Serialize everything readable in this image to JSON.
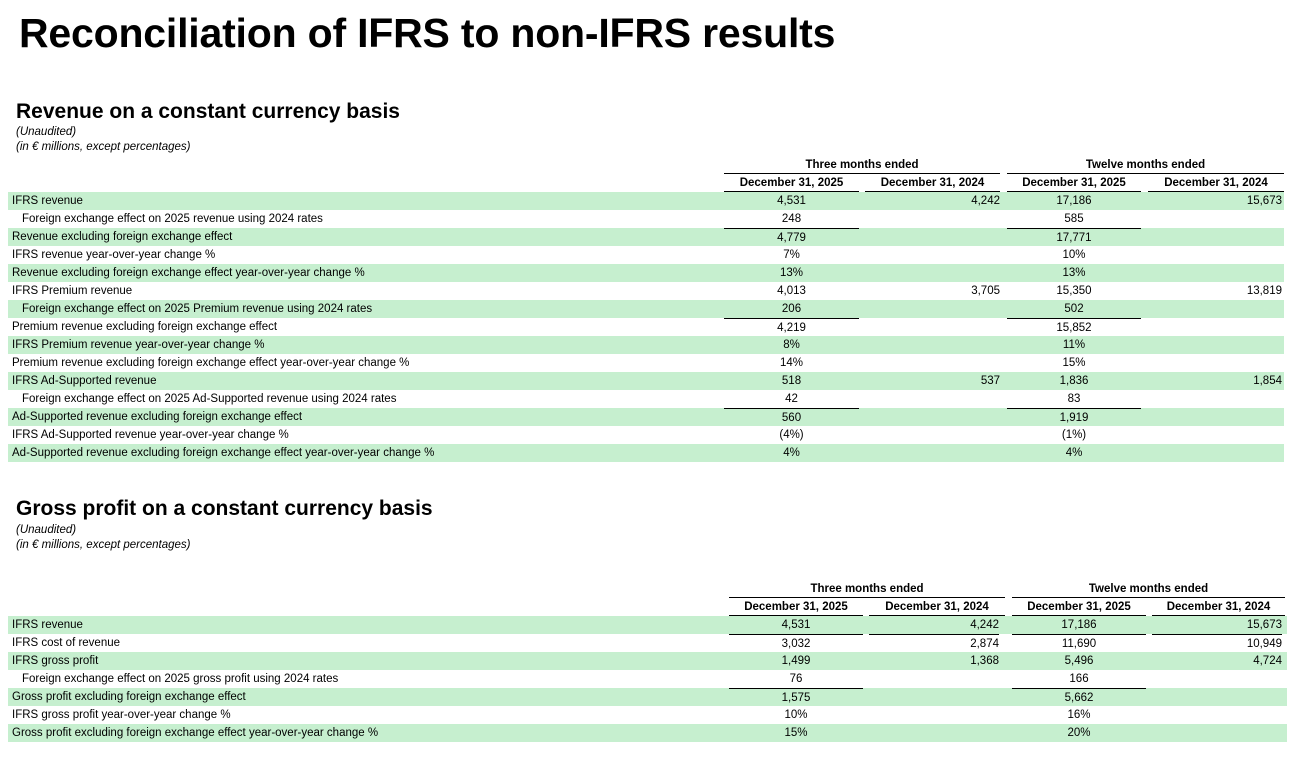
{
  "page_title": "Reconciliation of IFRS to non-IFRS results",
  "revenue": {
    "title": "Revenue on a constant currency basis",
    "unaudited": "(Unaudited)",
    "units": "(in € millions, except percentages)",
    "group_three": "Three months ended",
    "group_twelve": "Twelve months ended",
    "columns": [
      "December 31, 2025",
      "December 31, 2024",
      "December 31, 2025",
      "December 31, 2024"
    ],
    "rows": [
      {
        "label": "IFRS revenue",
        "c1": "4,531",
        "c2": "4,242",
        "c3": "17,186",
        "c4": "15,673"
      },
      {
        "label": "Foreign exchange effect on 2025 revenue using 2024 rates",
        "c1": "248",
        "c2": "",
        "c3": "585",
        "c4": ""
      },
      {
        "label": "Revenue excluding foreign exchange effect",
        "c1": "4,779",
        "c2": "",
        "c3": "17,771",
        "c4": ""
      },
      {
        "label": "IFRS revenue year-over-year change %",
        "c1": "7%",
        "c2": "",
        "c3": "10%",
        "c4": ""
      },
      {
        "label": "Revenue excluding foreign exchange effect year-over-year change %",
        "c1": "13%",
        "c2": "",
        "c3": "13%",
        "c4": ""
      },
      {
        "label": "IFRS Premium revenue",
        "c1": "4,013",
        "c2": "3,705",
        "c3": "15,350",
        "c4": "13,819"
      },
      {
        "label": "Foreign exchange effect on 2025 Premium revenue using 2024 rates",
        "c1": "206",
        "c2": "",
        "c3": "502",
        "c4": ""
      },
      {
        "label": "Premium revenue excluding foreign exchange effect",
        "c1": "4,219",
        "c2": "",
        "c3": "15,852",
        "c4": ""
      },
      {
        "label": "IFRS Premium revenue year-over-year change %",
        "c1": "8%",
        "c2": "",
        "c3": "11%",
        "c4": ""
      },
      {
        "label": "Premium revenue excluding foreign exchange effect year-over-year change %",
        "c1": "14%",
        "c2": "",
        "c3": "15%",
        "c4": ""
      },
      {
        "label": "IFRS Ad-Supported revenue",
        "c1": "518",
        "c2": "537",
        "c3": "1,836",
        "c4": "1,854"
      },
      {
        "label": "Foreign exchange effect on 2025 Ad-Supported revenue using 2024 rates",
        "c1": "42",
        "c2": "",
        "c3": "83",
        "c4": ""
      },
      {
        "label": "Ad-Supported revenue excluding foreign exchange effect",
        "c1": "560",
        "c2": "",
        "c3": "1,919",
        "c4": ""
      },
      {
        "label": "IFRS Ad-Supported revenue year-over-year change %",
        "c1": "(4%)",
        "c2": "",
        "c3": "(1%)",
        "c4": ""
      },
      {
        "label": "Ad-Supported revenue excluding foreign exchange effect year-over-year change %",
        "c1": "4%",
        "c2": "",
        "c3": "4%",
        "c4": ""
      }
    ]
  },
  "gross_profit": {
    "title": "Gross profit on a constant currency basis",
    "unaudited": "(Unaudited)",
    "units": "(in € millions, except percentages)",
    "group_three": "Three months ended",
    "group_twelve": "Twelve months ended",
    "columns": [
      "December 31, 2025",
      "December 31, 2024",
      "December 31, 2025",
      "December 31, 2024"
    ],
    "rows": [
      {
        "label": "IFRS revenue",
        "c1": "4,531",
        "c2": "4,242",
        "c3": "17,186",
        "c4": "15,673"
      },
      {
        "label": "IFRS cost of revenue",
        "c1": "3,032",
        "c2": "2,874",
        "c3": "11,690",
        "c4": "10,949"
      },
      {
        "label": "IFRS gross profit",
        "c1": "1,499",
        "c2": "1,368",
        "c3": "5,496",
        "c4": "4,724"
      },
      {
        "label": "Foreign exchange effect on 2025 gross profit using 2024 rates",
        "c1": "76",
        "c2": "",
        "c3": "166",
        "c4": ""
      },
      {
        "label": "Gross profit excluding foreign exchange effect",
        "c1": "1,575",
        "c2": "",
        "c3": "5,662",
        "c4": ""
      },
      {
        "label": "IFRS gross profit year-over-year change %",
        "c1": "10%",
        "c2": "",
        "c3": "16%",
        "c4": ""
      },
      {
        "label": "Gross profit excluding foreign exchange effect year-over-year change %",
        "c1": "15%",
        "c2": "",
        "c3": "20%",
        "c4": ""
      }
    ]
  }
}
